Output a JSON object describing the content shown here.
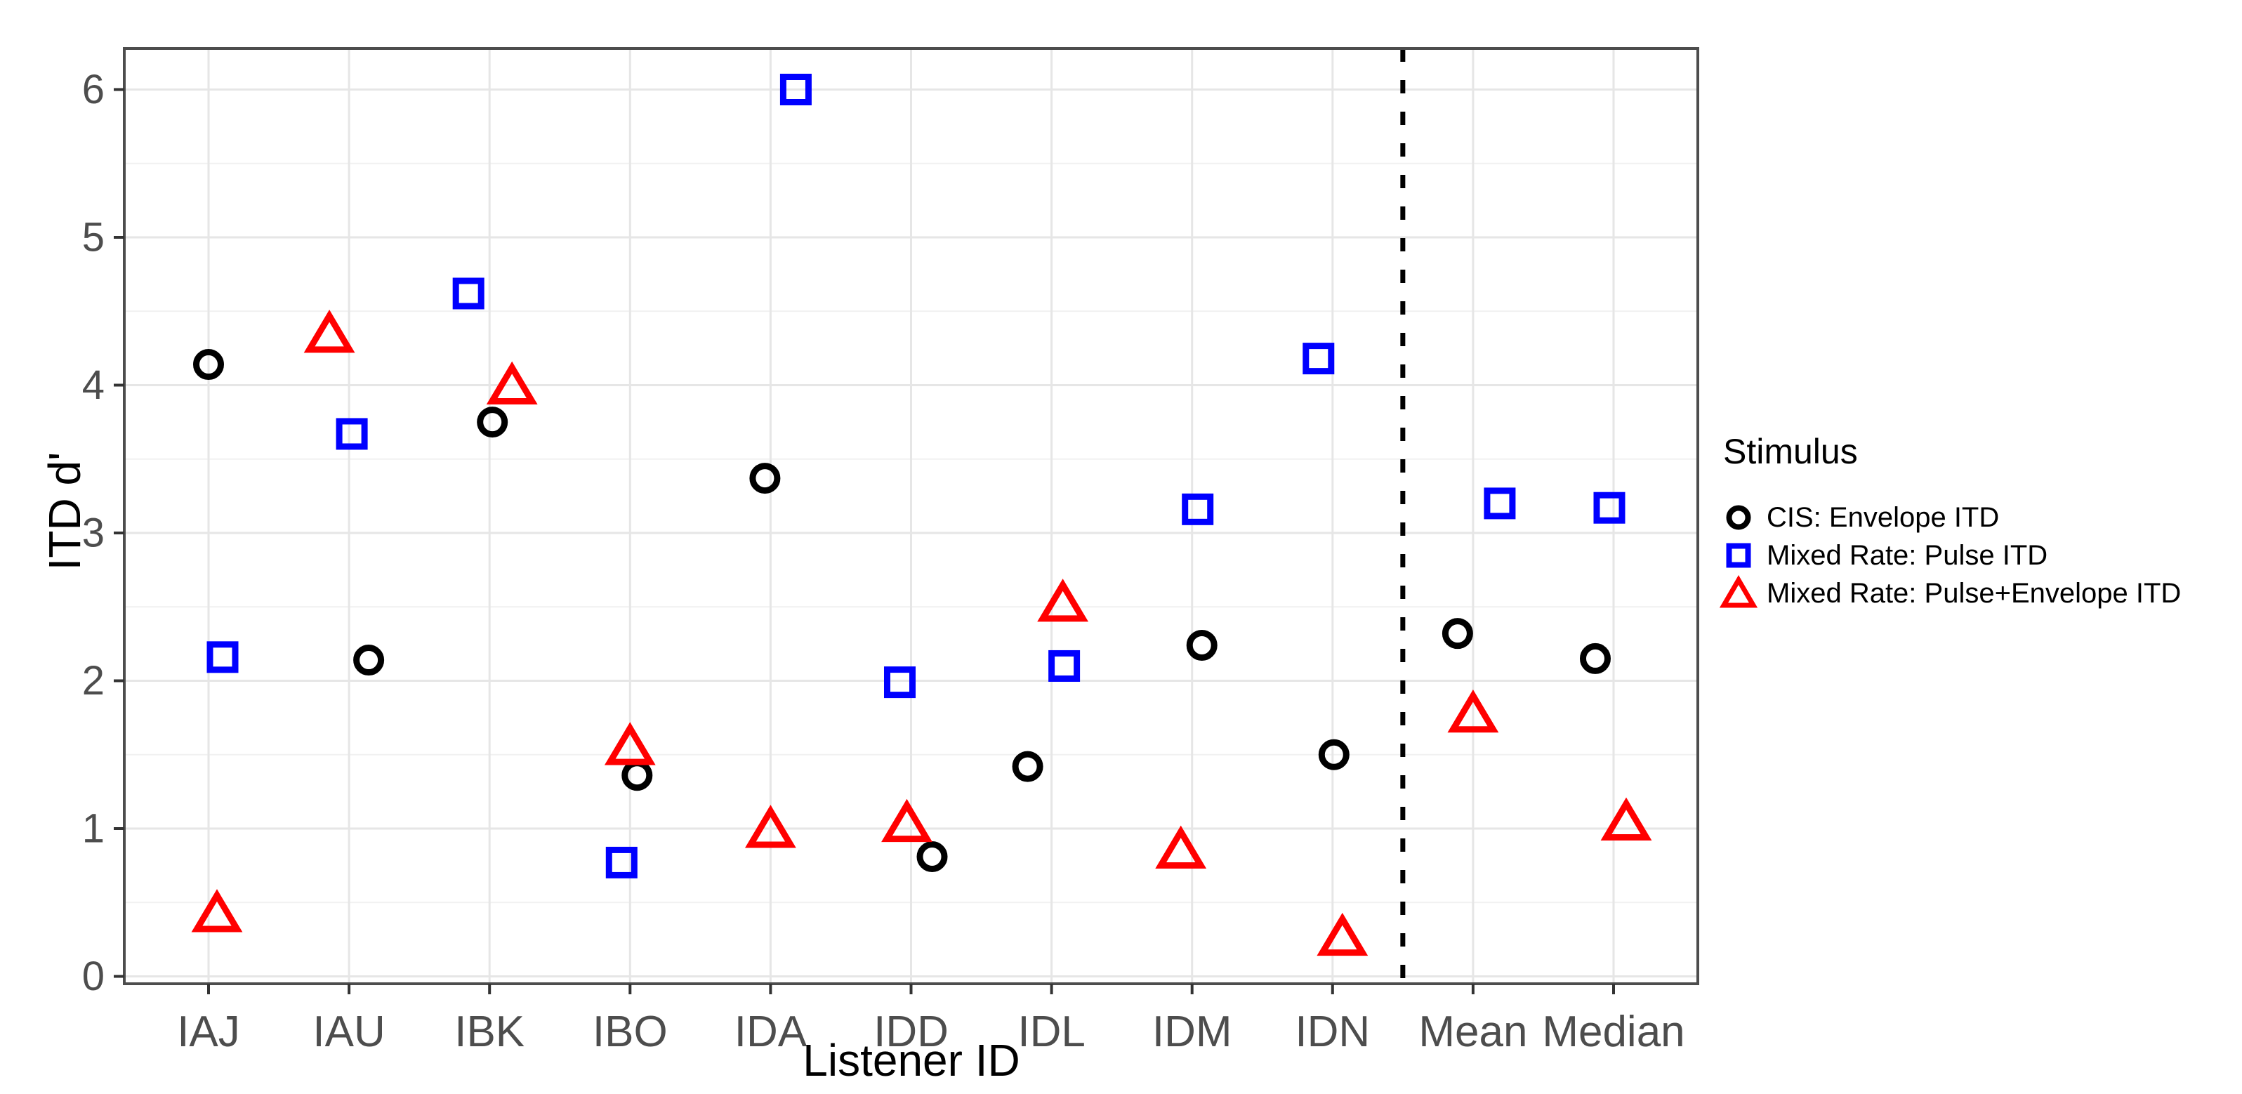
{
  "chart_data": {
    "type": "scatter",
    "title": "",
    "xlabel": "Listener ID",
    "ylabel": "ITD d'",
    "categories": [
      "IAJ",
      "IAU",
      "IBK",
      "IBO",
      "IDA",
      "IDD",
      "IDL",
      "IDM",
      "IDN",
      "Mean",
      "Median"
    ],
    "ylim": [
      0,
      6.28
    ],
    "yticks": [
      0,
      1,
      2,
      3,
      4,
      5,
      6
    ],
    "grid": {
      "horizontal_major": true,
      "horizontal_minor_step": 0.5,
      "vertical_major": true,
      "minor_vertical": false
    },
    "separator": {
      "style": "dashed",
      "between": [
        "IDN",
        "Mean"
      ],
      "color": "#000000"
    },
    "legend": {
      "title": "Stimulus",
      "position": "right"
    },
    "series": [
      {
        "name": "CIS: Envelope ITD",
        "marker": "circle",
        "color": "#000000",
        "values": [
          4.14,
          2.14,
          3.75,
          1.36,
          3.37,
          0.81,
          1.42,
          2.24,
          1.5,
          2.32,
          2.15
        ],
        "x_jitter": [
          0.0,
          0.14,
          0.02,
          0.05,
          -0.04,
          0.15,
          -0.17,
          0.07,
          0.01,
          -0.11,
          -0.13
        ]
      },
      {
        "name": "Mixed Rate: Pulse ITD",
        "marker": "square",
        "color": "#0000ff",
        "values": [
          2.16,
          3.67,
          4.62,
          0.77,
          6.0,
          1.99,
          2.1,
          3.16,
          4.18,
          3.2,
          3.17
        ],
        "x_jitter": [
          0.1,
          0.02,
          -0.15,
          -0.06,
          0.18,
          -0.08,
          0.09,
          0.04,
          -0.1,
          0.19,
          -0.03
        ]
      },
      {
        "name": "Mixed Rate: Pulse+Envelope ITD",
        "marker": "triangle",
        "color": "#ff0000",
        "values": [
          0.43,
          4.35,
          4.0,
          1.56,
          1.0,
          1.04,
          2.53,
          0.86,
          0.27,
          1.78,
          1.05
        ],
        "x_jitter": [
          0.06,
          -0.14,
          0.16,
          0.0,
          0.0,
          -0.03,
          0.08,
          -0.08,
          0.07,
          0.0,
          0.09
        ]
      }
    ],
    "style_colors": {
      "axis_text": "#4d4d4d",
      "panel_border": "#4d4d4d",
      "tick_marks": "#333333",
      "grid_major": "#e6e6e6",
      "grid_minor": "#f1f1f1",
      "background": "#ffffff"
    }
  }
}
